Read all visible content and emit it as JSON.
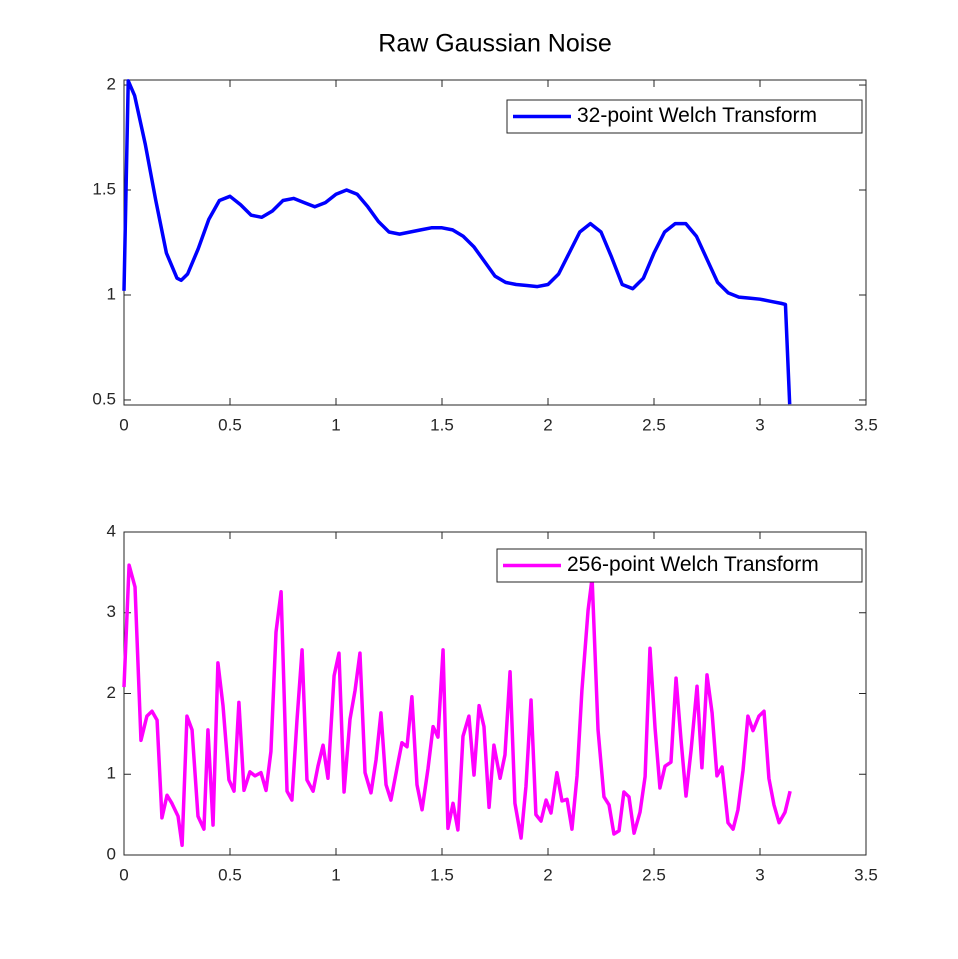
{
  "chart_data": [
    {
      "type": "line",
      "title": "Raw Gaussian Noise",
      "legend": "upper right",
      "xlim": [
        0,
        3.5
      ],
      "xticks": [
        0,
        0.5,
        1,
        1.5,
        2,
        2.5,
        3,
        3.5
      ],
      "ylim": [
        0.476,
        2.024
      ],
      "yticks": [
        0.5,
        1,
        1.5,
        2
      ],
      "series": [
        {
          "name": "32-point Welch Transform",
          "color": "#0000ff",
          "x": [
            0,
            0.02,
            0.05,
            0.1,
            0.15,
            0.2,
            0.25,
            0.27,
            0.3,
            0.35,
            0.4,
            0.45,
            0.5,
            0.55,
            0.6,
            0.65,
            0.7,
            0.75,
            0.8,
            0.85,
            0.9,
            0.95,
            1.0,
            1.05,
            1.1,
            1.15,
            1.2,
            1.25,
            1.3,
            1.35,
            1.4,
            1.45,
            1.5,
            1.55,
            1.6,
            1.65,
            1.7,
            1.75,
            1.8,
            1.85,
            1.9,
            1.95,
            2.0,
            2.05,
            2.1,
            2.15,
            2.2,
            2.25,
            2.3,
            2.35,
            2.4,
            2.45,
            2.5,
            2.55,
            2.6,
            2.65,
            2.7,
            2.75,
            2.8,
            2.85,
            2.9,
            2.95,
            3.0,
            3.05,
            3.1,
            3.12,
            3.14
          ],
          "values": [
            1.02,
            2.02,
            1.95,
            1.72,
            1.45,
            1.2,
            1.08,
            1.07,
            1.1,
            1.22,
            1.36,
            1.45,
            1.47,
            1.43,
            1.38,
            1.37,
            1.4,
            1.45,
            1.46,
            1.44,
            1.42,
            1.44,
            1.48,
            1.5,
            1.48,
            1.42,
            1.35,
            1.3,
            1.29,
            1.3,
            1.31,
            1.32,
            1.32,
            1.31,
            1.28,
            1.23,
            1.16,
            1.09,
            1.06,
            1.05,
            1.045,
            1.04,
            1.05,
            1.1,
            1.2,
            1.3,
            1.34,
            1.3,
            1.18,
            1.05,
            1.03,
            1.08,
            1.2,
            1.3,
            1.34,
            1.34,
            1.28,
            1.17,
            1.06,
            1.01,
            0.99,
            0.985,
            0.98,
            0.97,
            0.96,
            0.955,
            0.48
          ]
        }
      ]
    },
    {
      "type": "line",
      "legend": "upper right",
      "xlim": [
        0,
        3.5
      ],
      "xticks": [
        0,
        0.5,
        1,
        1.5,
        2,
        2.5,
        3,
        3.5
      ],
      "ylim": [
        0,
        4
      ],
      "yticks": [
        0,
        1,
        2,
        3,
        4
      ],
      "series": [
        {
          "name": "256-point Welch Transform",
          "color": "#ff00ff",
          "x": [
            0,
            0.024,
            0.052,
            0.08,
            0.108,
            0.132,
            0.156,
            0.179,
            0.203,
            0.226,
            0.255,
            0.274,
            0.297,
            0.321,
            0.349,
            0.377,
            0.396,
            0.42,
            0.443,
            0.467,
            0.495,
            0.519,
            0.542,
            0.566,
            0.594,
            0.618,
            0.646,
            0.67,
            0.693,
            0.717,
            0.741,
            0.769,
            0.792,
            0.816,
            0.84,
            0.863,
            0.892,
            0.915,
            0.939,
            0.962,
            0.991,
            1.014,
            1.038,
            1.066,
            1.09,
            1.113,
            1.137,
            1.165,
            1.189,
            1.212,
            1.236,
            1.259,
            1.288,
            1.311,
            1.335,
            1.358,
            1.382,
            1.406,
            1.434,
            1.458,
            1.481,
            1.505,
            1.528,
            1.552,
            1.575,
            1.599,
            1.627,
            1.651,
            1.675,
            1.698,
            1.722,
            1.745,
            1.774,
            1.797,
            1.821,
            1.844,
            1.873,
            1.896,
            1.92,
            1.943,
            1.967,
            1.991,
            2.014,
            2.042,
            2.066,
            2.09,
            2.113,
            2.137,
            2.16,
            2.189,
            2.208,
            2.236,
            2.264,
            2.288,
            2.311,
            2.335,
            2.358,
            2.382,
            2.406,
            2.434,
            2.458,
            2.481,
            2.505,
            2.528,
            2.552,
            2.58,
            2.604,
            2.627,
            2.651,
            2.675,
            2.703,
            2.726,
            2.75,
            2.774,
            2.797,
            2.821,
            2.849,
            2.873,
            2.896,
            2.92,
            2.943,
            2.967,
            2.995,
            3.019,
            3.042,
            3.066,
            3.09,
            3.118,
            3.142
          ],
          "values": [
            2.08,
            3.59,
            3.32,
            1.42,
            1.72,
            1.78,
            1.67,
            0.46,
            0.74,
            0.64,
            0.48,
            0.12,
            1.72,
            1.55,
            0.48,
            0.32,
            1.55,
            0.37,
            2.38,
            1.85,
            0.93,
            0.79,
            1.89,
            0.8,
            1.03,
            0.98,
            1.02,
            0.8,
            1.28,
            2.76,
            3.26,
            0.79,
            0.68,
            1.67,
            2.54,
            0.93,
            0.79,
            1.1,
            1.36,
            0.95,
            2.22,
            2.5,
            0.78,
            1.68,
            2.04,
            2.5,
            1.02,
            0.77,
            1.18,
            1.76,
            0.87,
            0.68,
            1.08,
            1.39,
            1.34,
            1.96,
            0.87,
            0.56,
            1.07,
            1.59,
            1.46,
            2.54,
            0.33,
            0.64,
            0.31,
            1.47,
            1.72,
            0.99,
            1.85,
            1.59,
            0.59,
            1.36,
            0.95,
            1.24,
            2.27,
            0.64,
            0.21,
            0.85,
            1.92,
            0.5,
            0.42,
            0.68,
            0.52,
            1.02,
            0.67,
            0.69,
            0.32,
            0.98,
            2.04,
            3.03,
            3.43,
            1.55,
            0.72,
            0.62,
            0.26,
            0.3,
            0.78,
            0.72,
            0.27,
            0.53,
            0.97,
            2.56,
            1.57,
            0.83,
            1.1,
            1.15,
            2.19,
            1.44,
            0.73,
            1.3,
            2.09,
            1.08,
            2.23,
            1.76,
            0.98,
            1.09,
            0.4,
            0.32,
            0.56,
            1.05,
            1.72,
            1.54,
            1.72,
            1.78,
            0.95,
            0.62,
            0.4,
            0.53,
            0.79
          ]
        }
      ]
    }
  ]
}
